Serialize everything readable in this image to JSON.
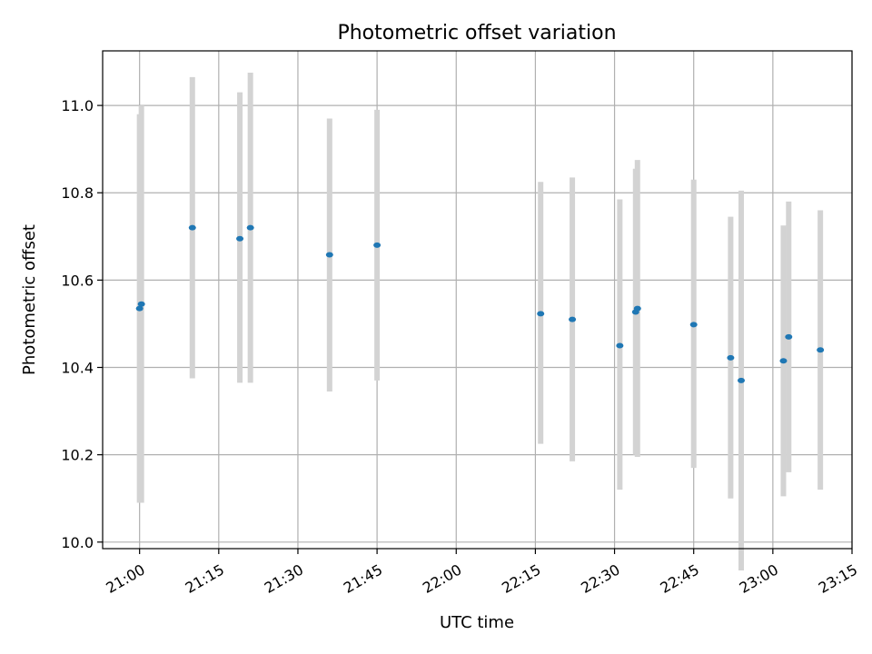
{
  "chart_data": {
    "type": "scatter",
    "title": "Photometric offset variation",
    "xlabel": "UTC time",
    "ylabel": "Photometric offset",
    "xlim": [
      "20:53",
      "23:15"
    ],
    "ylim": [
      9.985,
      11.125
    ],
    "x_ticks": [
      "21:00",
      "21:15",
      "21:30",
      "21:45",
      "22:00",
      "22:15",
      "22:30",
      "22:45",
      "23:00",
      "23:15"
    ],
    "y_ticks": [
      "10.0",
      "10.2",
      "10.4",
      "10.6",
      "10.8",
      "11.0"
    ],
    "grid": true,
    "marker_color": "#1f77b4",
    "errorbar_color": "#d3d3d3",
    "points": [
      {
        "x": "21:00",
        "y": 10.535,
        "ylow": 10.09,
        "yhigh": 10.98
      },
      {
        "x": "21:00",
        "y": 10.545,
        "ylow": 10.09,
        "yhigh": 11.0
      },
      {
        "x": "21:10",
        "y": 10.72,
        "ylow": 10.375,
        "yhigh": 11.065
      },
      {
        "x": "21:19",
        "y": 10.695,
        "ylow": 10.365,
        "yhigh": 11.03
      },
      {
        "x": "21:21",
        "y": 10.72,
        "ylow": 10.365,
        "yhigh": 11.075
      },
      {
        "x": "21:36",
        "y": 10.658,
        "ylow": 10.345,
        "yhigh": 10.97
      },
      {
        "x": "21:45",
        "y": 10.68,
        "ylow": 10.37,
        "yhigh": 10.99
      },
      {
        "x": "22:16",
        "y": 10.523,
        "ylow": 10.225,
        "yhigh": 10.825
      },
      {
        "x": "22:22",
        "y": 10.51,
        "ylow": 10.185,
        "yhigh": 10.835
      },
      {
        "x": "22:31",
        "y": 10.45,
        "ylow": 10.12,
        "yhigh": 10.785
      },
      {
        "x": "22:34",
        "y": 10.527,
        "ylow": 10.2,
        "yhigh": 10.855
      },
      {
        "x": "22:34",
        "y": 10.535,
        "ylow": 10.195,
        "yhigh": 10.875
      },
      {
        "x": "22:45",
        "y": 10.498,
        "ylow": 10.17,
        "yhigh": 10.83
      },
      {
        "x": "22:52",
        "y": 10.422,
        "ylow": 10.1,
        "yhigh": 10.745
      },
      {
        "x": "22:54",
        "y": 10.37,
        "ylow": 9.935,
        "yhigh": 10.805
      },
      {
        "x": "23:02",
        "y": 10.415,
        "ylow": 10.105,
        "yhigh": 10.725
      },
      {
        "x": "23:03",
        "y": 10.47,
        "ylow": 10.16,
        "yhigh": 10.78
      },
      {
        "x": "23:09",
        "y": 10.44,
        "ylow": 10.12,
        "yhigh": 10.76
      }
    ]
  }
}
